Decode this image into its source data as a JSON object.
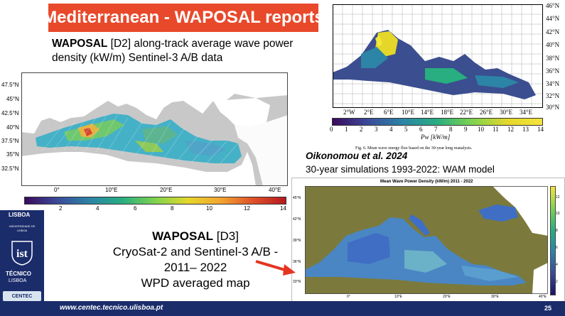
{
  "slide": {
    "title": "Mediterranean - WAPOSAL reports",
    "page_number": "25",
    "footer_url": "www.centec.tecnico.ulisboa.pt",
    "accent_color": "#e8492b",
    "brand_color": "#1b2c6b"
  },
  "description": {
    "bold": "WAPOSAL",
    "rest_line1": " [D2] along-track average wave power",
    "line2": "density (kW/m) Sentinel-3 A/B data"
  },
  "d3": {
    "bold": "WAPOSAL",
    "tag": " [D3]",
    "line2": "CryoSat-2 and Sentinel-3 A/B -",
    "line3": "2011– 2022",
    "line4": "WPD averaged map"
  },
  "oikonomou": {
    "ref": "Oikonomou et al. 2024",
    "subtitle": "30-year simulations  1993-2022: WAM model"
  },
  "map_d2": {
    "lat_ticks": [
      "47.5°N",
      "45°N",
      "42.5°N",
      "40°N",
      "37.5°N",
      "35°N",
      "32.5°N"
    ],
    "lon_ticks": [
      "0°",
      "10°E",
      "20°E",
      "30°E",
      "40°E"
    ],
    "colorbar_ticks": [
      "2",
      "4",
      "6",
      "8",
      "10",
      "12",
      "14"
    ]
  },
  "map_top": {
    "lat_ticks": [
      "46°N",
      "44°N",
      "42°N",
      "40°N",
      "38°N",
      "36°N",
      "34°N",
      "32°N",
      "30°N"
    ],
    "lon_ticks": [
      "2°W",
      "2°E",
      "6°E",
      "10°E",
      "14°E",
      "18°E",
      "22°E",
      "26°E",
      "30°E",
      "34°E"
    ],
    "colorbar_ticks": [
      "0",
      "1",
      "2",
      "3",
      "4",
      "5",
      "6",
      "7",
      "8",
      "9",
      "10",
      "11",
      "12",
      "13",
      "14"
    ],
    "colorbar_label": "Pw [kW/m]",
    "caption": "Fig. 6.  Mean wave energy flux based on the 30-year long reanalysis."
  },
  "map_wam": {
    "title": "Mean Wave Power Density (kW/m) 2011 - 2022",
    "lat_ticks": [
      "45°N",
      "42°N",
      "39°N",
      "36°N",
      "33°N"
    ],
    "lon_ticks": [
      "0°",
      "10°E",
      "20°E",
      "30°E",
      "40°E"
    ],
    "colorbar_ticks": [
      "12",
      "10",
      "8",
      "6",
      "4",
      "2"
    ]
  },
  "logo": {
    "top": "LISBOA",
    "sub": "UNIVERSIDADE DE LISBOA",
    "name": "TÉCNICO",
    "name2": "LISBOA",
    "centec": "CENTEC"
  }
}
